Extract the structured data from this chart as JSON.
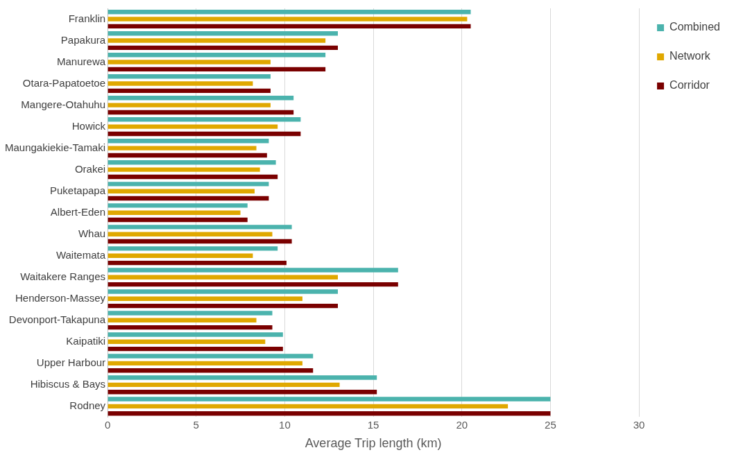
{
  "chart_data": {
    "type": "bar",
    "orientation": "horizontal",
    "xlabel": "Average Trip length (km)",
    "categories": [
      "Franklin",
      "Papakura",
      "Manurewa",
      "Otara-Papatoetoe",
      "Mangere-Otahuhu",
      "Howick",
      "Maungakiekie-Tamaki",
      "Orakei",
      "Puketapapa",
      "Albert-Eden",
      "Whau",
      "Waitemata",
      "Waitakere Ranges",
      "Henderson-Massey",
      "Devonport-Takapuna",
      "Kaipatiki",
      "Upper Harbour",
      "Hibiscus & Bays",
      "Rodney"
    ],
    "series": [
      {
        "name": "Combined",
        "color": "#4bb3ad",
        "values": [
          20.5,
          13.0,
          12.3,
          9.2,
          10.5,
          10.9,
          9.1,
          9.5,
          9.1,
          7.9,
          10.4,
          9.6,
          16.4,
          13.0,
          9.3,
          9.9,
          11.6,
          15.2,
          25.0
        ]
      },
      {
        "name": "Network",
        "color": "#e0a800",
        "values": [
          20.3,
          12.3,
          9.2,
          8.2,
          9.2,
          9.6,
          8.4,
          8.6,
          8.3,
          7.5,
          9.3,
          8.2,
          13.0,
          11.0,
          8.4,
          8.9,
          11.0,
          13.1,
          22.6
        ]
      },
      {
        "name": "Corridor",
        "color": "#7a0000",
        "values": [
          20.5,
          13.0,
          12.3,
          9.2,
          10.5,
          10.9,
          9.0,
          9.6,
          9.1,
          7.9,
          10.4,
          10.1,
          16.4,
          13.0,
          9.3,
          9.9,
          11.6,
          15.2,
          25.0
        ]
      }
    ],
    "xlim": [
      0,
      30
    ],
    "xticks": [
      0,
      5,
      10,
      15,
      20,
      25,
      30
    ],
    "grid": "x",
    "legend": "right"
  }
}
